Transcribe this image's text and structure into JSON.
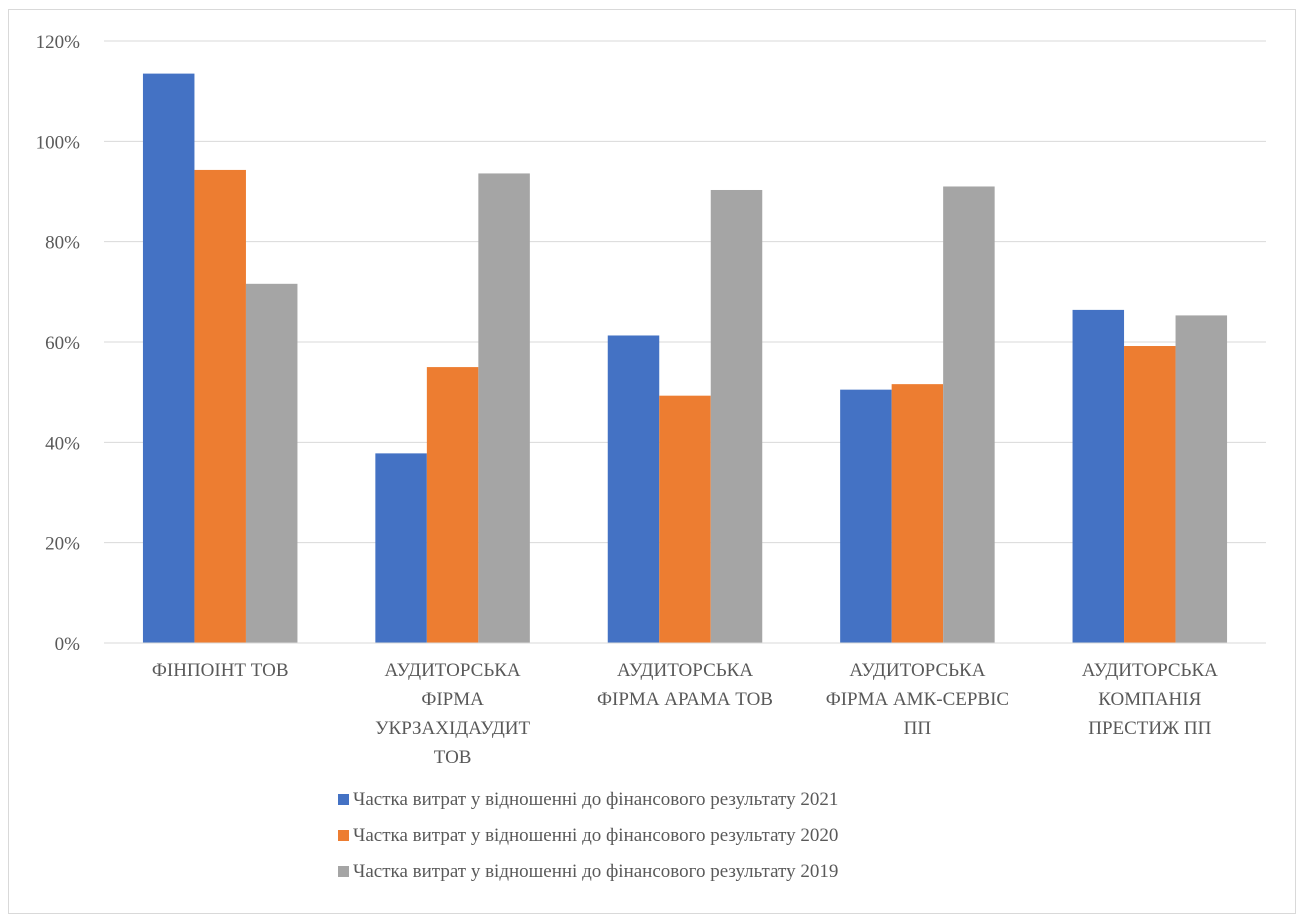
{
  "chart_data": {
    "type": "bar",
    "categories": [
      [
        "ФІНПОІНТ ТОВ"
      ],
      [
        "АУДИТОРСЬКА",
        "ФІРМА",
        "УКРЗАХІДАУДИТ",
        "ТОВ"
      ],
      [
        "АУДИТОРСЬКА",
        "ФІРМА АРАМА ТОВ"
      ],
      [
        "АУДИТОРСЬКА",
        "ФІРМА АМК-СЕРВІС",
        "ПП"
      ],
      [
        "АУДИТОРСЬКА",
        "КОМПАНІЯ",
        "ПРЕСТИЖ ПП"
      ]
    ],
    "series": [
      {
        "name": "Частка витрат у відношенні до фінансового результату 2021",
        "color": "#4472c4",
        "values": [
          113.5,
          37.8,
          61.3,
          50.5,
          66.4
        ]
      },
      {
        "name": "Частка витрат у відношенні до фінансового результату 2020",
        "color": "#ed7d31",
        "values": [
          94.3,
          55.0,
          49.3,
          51.6,
          59.2
        ]
      },
      {
        "name": "Частка витрат у відношенні до фінансового результату 2019",
        "color": "#a5a5a5",
        "values": [
          71.6,
          93.6,
          90.3,
          91.0,
          65.3
        ]
      }
    ],
    "yticks": [
      "0%",
      "20%",
      "40%",
      "60%",
      "80%",
      "100%",
      "120%"
    ],
    "ylim": [
      0,
      120
    ],
    "grid": true,
    "legend": "bottom"
  }
}
